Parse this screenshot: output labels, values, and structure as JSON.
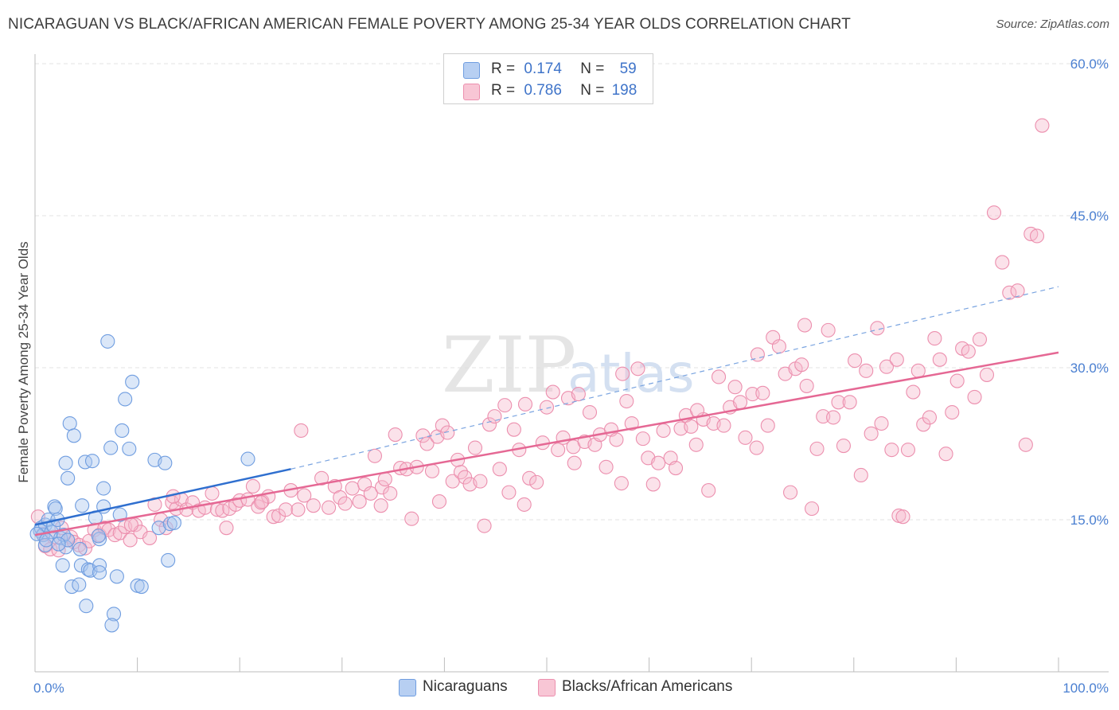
{
  "header": {
    "title": "NICARAGUAN VS BLACK/AFRICAN AMERICAN FEMALE POVERTY AMONG 25-34 YEAR OLDS CORRELATION CHART",
    "source": "Source: ZipAtlas.com"
  },
  "legend": {
    "rows": [
      {
        "r_label": "R =",
        "r_value": "0.174",
        "n_label": "N =",
        "n_value": "59"
      },
      {
        "r_label": "R =",
        "r_value": "0.786",
        "n_label": "N =",
        "n_value": "198"
      }
    ],
    "series": [
      {
        "label": "Nicaraguans"
      },
      {
        "label": "Blacks/African Americans"
      }
    ]
  },
  "colors": {
    "blue_fill": "#a9c6ef",
    "blue_stroke": "#6f9de0",
    "blue_line": "#2f6fcf",
    "pink_fill": "#f6b9cc",
    "pink_stroke": "#ec8fae",
    "pink_line": "#e56894",
    "axis_text": "#4a7fd1",
    "grid": "#e3e3e3"
  },
  "chart_data": {
    "type": "scatter",
    "title": "NICARAGUAN VS BLACK/AFRICAN AMERICAN FEMALE POVERTY AMONG 25-34 YEAR OLDS CORRELATION CHART",
    "xlabel": "",
    "ylabel": "Female Poverty Among 25-34 Year Olds",
    "xlim": [
      0,
      100
    ],
    "ylim": [
      0,
      60
    ],
    "x_tick_labels": [
      "0.0%",
      "100.0%"
    ],
    "y_ticks": [
      15,
      30,
      45,
      60
    ],
    "y_tick_labels": [
      "15.0%",
      "30.0%",
      "45.0%",
      "60.0%"
    ],
    "grid": true,
    "legend_position": "top-center",
    "watermark": "ZIPatlas",
    "series": [
      {
        "name": "Nicaraguans",
        "color": "blue",
        "trend": {
          "x": [
            0,
            25
          ],
          "y": [
            14.5,
            20.0
          ],
          "dashed_extension_to": [
            100,
            38.0
          ]
        },
        "points": [
          [
            0.5,
            13.9
          ],
          [
            0.6,
            14.2
          ],
          [
            0.8,
            13.5
          ],
          [
            1.0,
            14.5
          ],
          [
            1.0,
            12.5
          ],
          [
            1.3,
            15.0
          ],
          [
            1.6,
            13.8
          ],
          [
            1.8,
            14.4
          ],
          [
            1.9,
            16.3
          ],
          [
            2.0,
            16.1
          ],
          [
            2.2,
            15.0
          ],
          [
            2.5,
            13.2
          ],
          [
            2.8,
            13.5
          ],
          [
            3.0,
            12.3
          ],
          [
            3.2,
            13.0
          ],
          [
            2.7,
            10.5
          ],
          [
            3.0,
            20.6
          ],
          [
            3.2,
            19.1
          ],
          [
            3.4,
            24.5
          ],
          [
            3.8,
            23.3
          ],
          [
            3.6,
            8.4
          ],
          [
            4.3,
            8.6
          ],
          [
            4.4,
            12.1
          ],
          [
            4.5,
            10.5
          ],
          [
            4.6,
            16.4
          ],
          [
            4.9,
            20.7
          ],
          [
            5.0,
            6.5
          ],
          [
            5.2,
            10.1
          ],
          [
            5.4,
            10.0
          ],
          [
            5.6,
            20.8
          ],
          [
            5.9,
            15.2
          ],
          [
            6.3,
            13.1
          ],
          [
            6.2,
            13.4
          ],
          [
            6.3,
            10.5
          ],
          [
            6.3,
            9.8
          ],
          [
            6.7,
            16.3
          ],
          [
            6.7,
            18.1
          ],
          [
            7.1,
            32.6
          ],
          [
            7.4,
            22.1
          ],
          [
            7.7,
            5.7
          ],
          [
            7.5,
            4.6
          ],
          [
            8.0,
            9.4
          ],
          [
            8.3,
            15.5
          ],
          [
            8.5,
            23.8
          ],
          [
            8.8,
            26.9
          ],
          [
            9.2,
            22.0
          ],
          [
            9.5,
            28.6
          ],
          [
            10.0,
            8.5
          ],
          [
            10.4,
            8.4
          ],
          [
            11.7,
            20.9
          ],
          [
            12.1,
            14.2
          ],
          [
            12.7,
            20.6
          ],
          [
            13.0,
            11.0
          ],
          [
            13.2,
            14.6
          ],
          [
            13.6,
            14.7
          ],
          [
            20.8,
            21.0
          ],
          [
            0.2,
            13.6
          ],
          [
            1.1,
            13.0
          ],
          [
            2.3,
            12.6
          ]
        ]
      },
      {
        "name": "Blacks/African Americans",
        "color": "pink",
        "trend": {
          "x": [
            0,
            100
          ],
          "y": [
            13.5,
            31.5
          ]
        },
        "points": [
          [
            0.3,
            15.3
          ],
          [
            0.8,
            13.6
          ],
          [
            1.0,
            12.4
          ],
          [
            1.5,
            12.1
          ],
          [
            1.8,
            13.3
          ],
          [
            2.3,
            12.0
          ],
          [
            2.6,
            14.2
          ],
          [
            3.2,
            13.0
          ],
          [
            3.5,
            13.3
          ],
          [
            3.8,
            12.8
          ],
          [
            4.3,
            12.5
          ],
          [
            4.9,
            12.2
          ],
          [
            5.3,
            12.9
          ],
          [
            5.8,
            14.0
          ],
          [
            6.3,
            13.5
          ],
          [
            6.8,
            14.2
          ],
          [
            7.2,
            14.0
          ],
          [
            7.8,
            13.5
          ],
          [
            8.3,
            13.7
          ],
          [
            8.8,
            14.3
          ],
          [
            9.3,
            13.0
          ],
          [
            9.8,
            14.5
          ],
          [
            10.3,
            13.8
          ],
          [
            11.2,
            13.2
          ],
          [
            11.7,
            16.5
          ],
          [
            12.3,
            15.0
          ],
          [
            12.8,
            14.2
          ],
          [
            13.4,
            16.7
          ],
          [
            13.8,
            16.1
          ],
          [
            14.3,
            17.0
          ],
          [
            14.8,
            16.0
          ],
          [
            15.4,
            16.7
          ],
          [
            16.0,
            15.9
          ],
          [
            16.6,
            16.2
          ],
          [
            17.3,
            17.6
          ],
          [
            17.8,
            16.0
          ],
          [
            18.3,
            15.9
          ],
          [
            18.7,
            14.2
          ],
          [
            19.0,
            16.1
          ],
          [
            19.6,
            16.5
          ],
          [
            20.0,
            16.9
          ],
          [
            20.8,
            17.0
          ],
          [
            21.3,
            18.3
          ],
          [
            21.8,
            16.3
          ],
          [
            22.2,
            16.8
          ],
          [
            22.8,
            17.3
          ],
          [
            23.3,
            15.3
          ],
          [
            23.8,
            15.4
          ],
          [
            24.5,
            16.0
          ],
          [
            25.0,
            17.9
          ],
          [
            25.7,
            16.0
          ],
          [
            26.3,
            17.4
          ],
          [
            27.2,
            16.4
          ],
          [
            28.0,
            19.1
          ],
          [
            28.7,
            16.2
          ],
          [
            29.3,
            18.3
          ],
          [
            29.8,
            17.2
          ],
          [
            30.3,
            16.6
          ],
          [
            31.0,
            18.1
          ],
          [
            31.7,
            16.8
          ],
          [
            32.2,
            18.5
          ],
          [
            32.8,
            17.6
          ],
          [
            33.2,
            21.3
          ],
          [
            33.9,
            18.2
          ],
          [
            34.2,
            19.0
          ],
          [
            34.7,
            17.6
          ],
          [
            35.2,
            23.4
          ],
          [
            35.7,
            20.1
          ],
          [
            36.3,
            20.0
          ],
          [
            36.8,
            15.1
          ],
          [
            37.3,
            20.2
          ],
          [
            37.9,
            23.3
          ],
          [
            38.3,
            22.5
          ],
          [
            38.8,
            19.8
          ],
          [
            39.3,
            23.2
          ],
          [
            39.8,
            24.3
          ],
          [
            40.3,
            23.6
          ],
          [
            40.8,
            18.8
          ],
          [
            41.3,
            20.9
          ],
          [
            41.6,
            19.7
          ],
          [
            42.0,
            19.2
          ],
          [
            42.5,
            18.5
          ],
          [
            43.0,
            22.1
          ],
          [
            43.5,
            18.8
          ],
          [
            43.9,
            14.4
          ],
          [
            44.4,
            24.4
          ],
          [
            44.9,
            25.2
          ],
          [
            45.4,
            20.0
          ],
          [
            45.9,
            26.3
          ],
          [
            46.3,
            17.7
          ],
          [
            46.8,
            23.9
          ],
          [
            47.3,
            21.9
          ],
          [
            47.8,
            16.5
          ],
          [
            48.3,
            19.1
          ],
          [
            49.0,
            18.7
          ],
          [
            49.6,
            22.6
          ],
          [
            50.0,
            26.1
          ],
          [
            50.6,
            27.6
          ],
          [
            51.1,
            21.9
          ],
          [
            51.6,
            23.1
          ],
          [
            52.1,
            27.0
          ],
          [
            52.6,
            22.2
          ],
          [
            53.1,
            27.4
          ],
          [
            53.7,
            22.7
          ],
          [
            54.2,
            25.6
          ],
          [
            54.7,
            22.4
          ],
          [
            55.2,
            23.4
          ],
          [
            55.8,
            20.2
          ],
          [
            56.3,
            23.9
          ],
          [
            56.8,
            22.9
          ],
          [
            57.3,
            18.6
          ],
          [
            57.8,
            26.7
          ],
          [
            58.3,
            24.5
          ],
          [
            58.9,
            29.9
          ],
          [
            59.4,
            23.0
          ],
          [
            59.9,
            21.1
          ],
          [
            60.4,
            18.5
          ],
          [
            60.9,
            20.6
          ],
          [
            61.4,
            23.8
          ],
          [
            62.1,
            21.1
          ],
          [
            62.6,
            20.1
          ],
          [
            63.1,
            24.0
          ],
          [
            63.6,
            25.3
          ],
          [
            64.1,
            24.2
          ],
          [
            64.6,
            22.4
          ],
          [
            65.3,
            24.9
          ],
          [
            65.8,
            17.9
          ],
          [
            66.3,
            24.5
          ],
          [
            66.8,
            29.1
          ],
          [
            67.3,
            24.3
          ],
          [
            67.9,
            26.1
          ],
          [
            68.4,
            28.1
          ],
          [
            68.9,
            26.6
          ],
          [
            69.4,
            23.1
          ],
          [
            70.1,
            27.4
          ],
          [
            70.6,
            31.3
          ],
          [
            71.1,
            27.5
          ],
          [
            71.6,
            24.3
          ],
          [
            72.1,
            33.0
          ],
          [
            72.7,
            32.1
          ],
          [
            73.3,
            29.4
          ],
          [
            73.8,
            17.7
          ],
          [
            74.3,
            29.9
          ],
          [
            74.9,
            30.3
          ],
          [
            75.4,
            28.2
          ],
          [
            75.9,
            16.1
          ],
          [
            76.4,
            22.0
          ],
          [
            77.0,
            25.2
          ],
          [
            77.5,
            33.7
          ],
          [
            78.0,
            25.1
          ],
          [
            78.5,
            26.6
          ],
          [
            79.0,
            22.3
          ],
          [
            79.6,
            26.6
          ],
          [
            80.1,
            30.7
          ],
          [
            80.7,
            19.4
          ],
          [
            81.2,
            29.7
          ],
          [
            81.7,
            23.5
          ],
          [
            82.3,
            33.9
          ],
          [
            82.7,
            24.5
          ],
          [
            83.2,
            30.1
          ],
          [
            83.7,
            21.9
          ],
          [
            84.4,
            15.4
          ],
          [
            84.8,
            15.3
          ],
          [
            85.3,
            21.9
          ],
          [
            85.8,
            27.6
          ],
          [
            86.3,
            29.7
          ],
          [
            86.8,
            24.4
          ],
          [
            87.4,
            25.1
          ],
          [
            87.9,
            32.9
          ],
          [
            88.4,
            30.8
          ],
          [
            89.0,
            21.5
          ],
          [
            89.6,
            25.6
          ],
          [
            90.1,
            28.7
          ],
          [
            90.6,
            31.9
          ],
          [
            91.2,
            31.6
          ],
          [
            91.8,
            27.1
          ],
          [
            92.3,
            32.8
          ],
          [
            93.0,
            29.3
          ],
          [
            93.7,
            45.3
          ],
          [
            94.5,
            40.4
          ],
          [
            95.2,
            37.4
          ],
          [
            96.0,
            37.6
          ],
          [
            96.8,
            22.4
          ],
          [
            97.3,
            43.2
          ],
          [
            97.9,
            43.0
          ],
          [
            98.4,
            53.9
          ],
          [
            13.5,
            17.3
          ],
          [
            26.0,
            23.8
          ],
          [
            39.5,
            16.8
          ],
          [
            52.7,
            20.6
          ],
          [
            64.7,
            25.8
          ],
          [
            75.2,
            34.2
          ],
          [
            84.2,
            30.8
          ],
          [
            47.9,
            26.4
          ],
          [
            57.4,
            29.4
          ],
          [
            33.8,
            16.4
          ],
          [
            22.1,
            16.7
          ],
          [
            9.4,
            14.5
          ],
          [
            70.5,
            22.1
          ]
        ]
      }
    ]
  }
}
